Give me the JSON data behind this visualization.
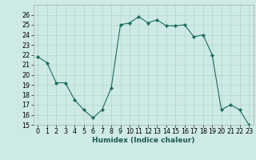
{
  "x": [
    0,
    1,
    2,
    3,
    4,
    5,
    6,
    7,
    8,
    9,
    10,
    11,
    12,
    13,
    14,
    15,
    16,
    17,
    18,
    19,
    20,
    21,
    22,
    23
  ],
  "y": [
    21.8,
    21.2,
    19.2,
    19.2,
    17.5,
    16.5,
    15.7,
    16.5,
    18.7,
    25.0,
    25.2,
    25.8,
    25.2,
    25.5,
    24.9,
    24.9,
    25.0,
    23.8,
    24.0,
    22.0,
    16.5,
    17.0,
    16.5,
    15.0
  ],
  "line_color": "#1a6b5a",
  "marker": "D",
  "marker_size": 2.2,
  "bg_color": "#ceeae6",
  "grid_color": "#afd4ce",
  "xlabel": "Humidex (Indice chaleur)",
  "ylim": [
    15,
    27
  ],
  "xlim": [
    -0.5,
    23.5
  ],
  "yticks": [
    15,
    16,
    17,
    18,
    19,
    20,
    21,
    22,
    23,
    24,
    25,
    26
  ],
  "xticks": [
    0,
    1,
    2,
    3,
    4,
    5,
    6,
    7,
    8,
    9,
    10,
    11,
    12,
    13,
    14,
    15,
    16,
    17,
    18,
    19,
    20,
    21,
    22,
    23
  ],
  "xlabel_fontsize": 6.5,
  "tick_fontsize": 5.8
}
